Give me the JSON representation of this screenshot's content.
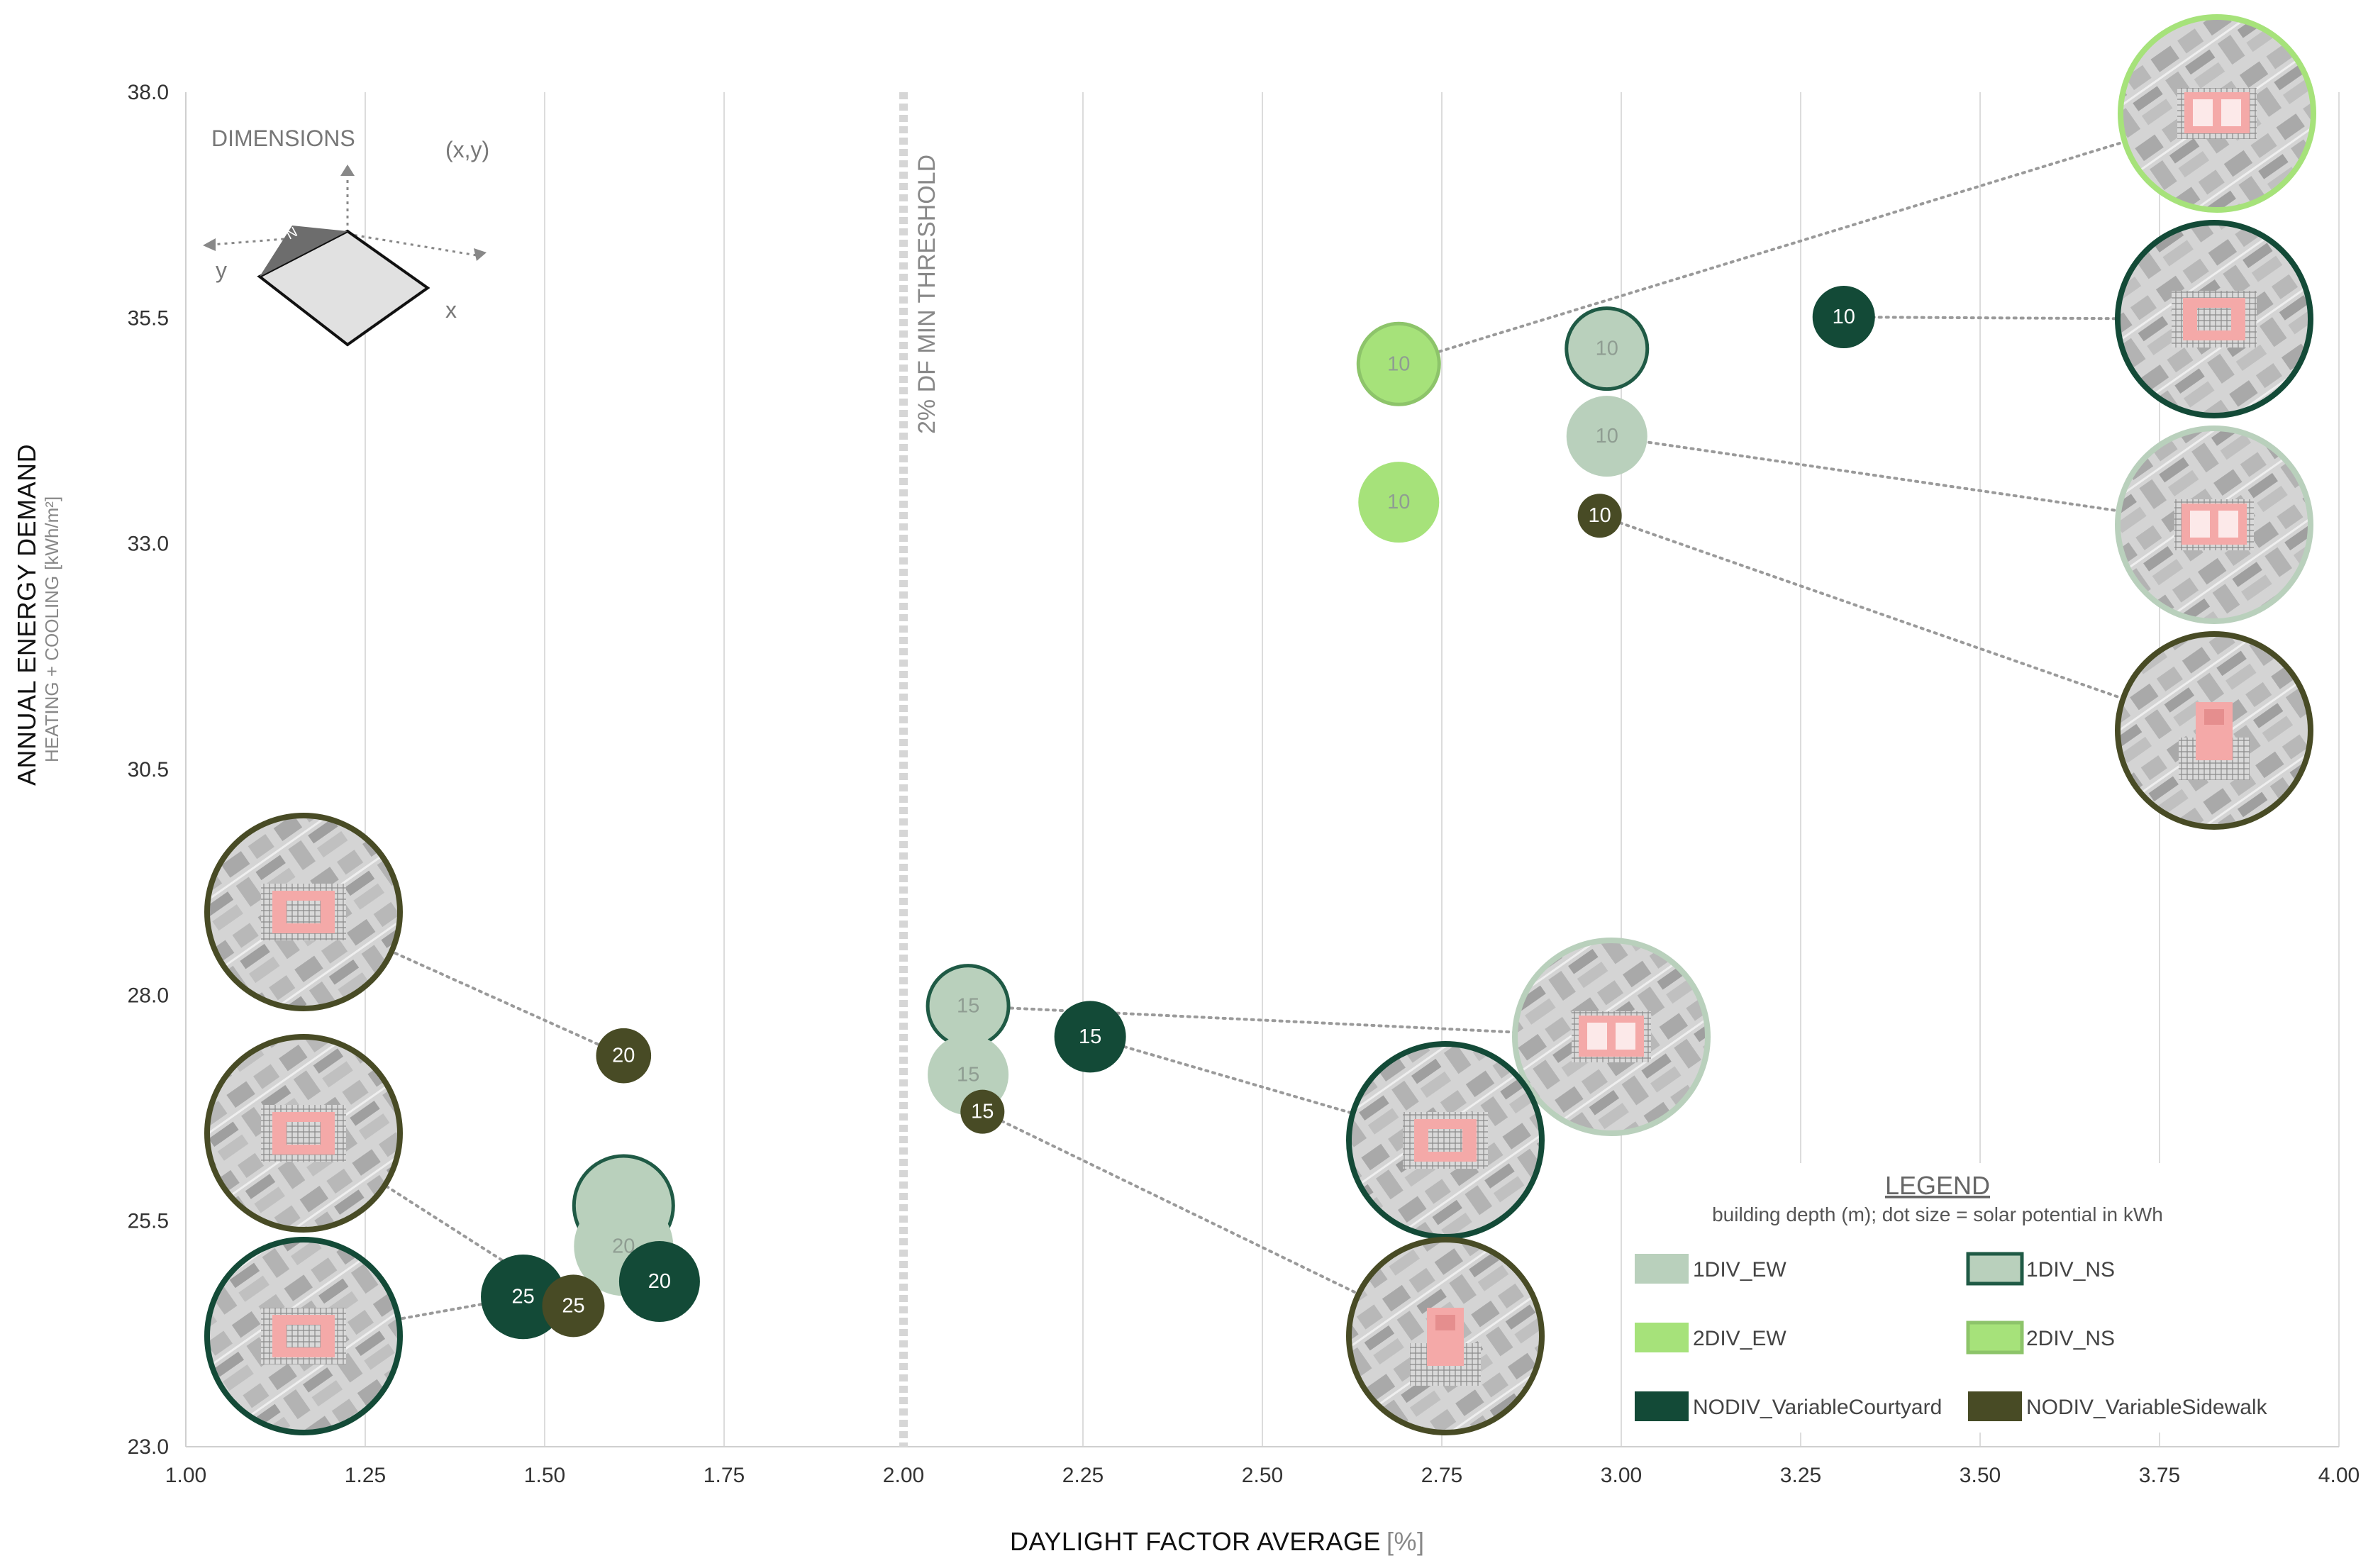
{
  "chart_data": {
    "type": "scatter",
    "title": "",
    "xlabel": "DAYLIGHT FACTOR AVERAGE",
    "xlabel_unit": "[%]",
    "ylabel": "ANNUAL ENERGY DEMAND",
    "ylabel_sub": "HEATING + COOLING",
    "ylabel_unit": "[kWh/m²]",
    "xlim": [
      1.0,
      4.0
    ],
    "ylim": [
      23.0,
      38.0
    ],
    "x_ticks": [
      "1.00",
      "1.25",
      "1.50",
      "1.75",
      "2.00",
      "2.25",
      "2.50",
      "2.75",
      "3.00",
      "3.25",
      "3.50",
      "3.75",
      "4.00"
    ],
    "y_ticks": [
      "23.0",
      "25.5",
      "28.0",
      "30.5",
      "33.0",
      "35.5",
      "38.0"
    ],
    "threshold": {
      "x": 2.0,
      "label": "2% DF MIN THRESHOLD"
    },
    "dimensions_label": "DIMENSIONS",
    "dimensions_xy": "(x,y)",
    "dimensions_axis_x": "x",
    "dimensions_axis_y": "y",
    "dimensions_north": "N",
    "legend": {
      "title": "LEGEND",
      "subtitle": "building depth (m); dot size = solar potential in kWh",
      "items": [
        {
          "name": "1DIV_EW",
          "fill": "#b9d0bc",
          "stroke": "#b9d0bc"
        },
        {
          "name": "1DIV_NS",
          "fill": "#b9d0bc",
          "stroke": "#1f5a45"
        },
        {
          "name": "2DIV_EW",
          "fill": "#a6e27a",
          "stroke": "#a6e27a"
        },
        {
          "name": "2DIV_NS",
          "fill": "#a6e27a",
          "stroke": "#8dc46a"
        },
        {
          "name": "NODIV_VariableCourtyard",
          "fill": "#134a37",
          "stroke": "#134a37"
        },
        {
          "name": "NODIV_VariableSidewalk",
          "fill": "#484b25",
          "stroke": "#484b25"
        }
      ]
    },
    "series": [
      {
        "name": "2DIV_NS",
        "points": [
          {
            "x": 2.69,
            "y": 34.99,
            "depth": "10",
            "size": 3
          }
        ]
      },
      {
        "name": "2DIV_EW",
        "points": [
          {
            "x": 2.69,
            "y": 33.46,
            "depth": "10",
            "size": 3
          }
        ]
      },
      {
        "name": "1DIV_NS",
        "points": [
          {
            "x": 2.98,
            "y": 35.16,
            "depth": "10",
            "size": 3
          },
          {
            "x": 2.09,
            "y": 27.88,
            "depth": "15",
            "size": 3
          },
          {
            "x": 1.61,
            "y": 25.67,
            "depth": "20",
            "size": 4
          }
        ]
      },
      {
        "name": "1DIV_EW",
        "points": [
          {
            "x": 2.98,
            "y": 34.19,
            "depth": "10",
            "size": 3
          },
          {
            "x": 2.09,
            "y": 27.12,
            "depth": "15",
            "size": 3
          },
          {
            "x": 1.61,
            "y": 25.22,
            "depth": "20",
            "size": 4
          }
        ]
      },
      {
        "name": "NODIV_VariableCourtyard",
        "points": [
          {
            "x": 3.31,
            "y": 35.51,
            "depth": "10",
            "size": 2
          },
          {
            "x": 2.26,
            "y": 27.54,
            "depth": "15",
            "size": 2.5
          },
          {
            "x": 1.66,
            "y": 24.83,
            "depth": "20",
            "size": 3
          },
          {
            "x": 1.47,
            "y": 24.66,
            "depth": "25",
            "size": 3.2
          }
        ]
      },
      {
        "name": "NODIV_VariableSidewalk",
        "points": [
          {
            "x": 2.97,
            "y": 33.31,
            "depth": "10",
            "size": 1
          },
          {
            "x": 2.11,
            "y": 26.71,
            "depth": "15",
            "size": 1
          },
          {
            "x": 1.61,
            "y": 27.33,
            "depth": "20",
            "size": 1.6
          },
          {
            "x": 1.54,
            "y": 24.56,
            "depth": "25",
            "size": 2
          }
        ]
      }
    ],
    "callouts": [
      {
        "series": "2DIV_NS",
        "depth": "10"
      },
      {
        "series": "NODIV_VariableCourtyard",
        "depth": "10"
      },
      {
        "series": "1DIV_EW",
        "depth": "10"
      },
      {
        "series": "NODIV_VariableSidewalk",
        "depth": "10"
      },
      {
        "series": "NODIV_VariableSidewalk",
        "depth": "20"
      },
      {
        "series": "NODIV_VariableSidewalk",
        "depth": "25"
      },
      {
        "series": "NODIV_VariableCourtyard",
        "depth": "25"
      },
      {
        "series": "1DIV_NS",
        "depth": "15"
      },
      {
        "series": "NODIV_VariableCourtyard",
        "depth": "15"
      },
      {
        "series": "NODIV_VariableSidewalk",
        "depth": "15"
      }
    ]
  }
}
